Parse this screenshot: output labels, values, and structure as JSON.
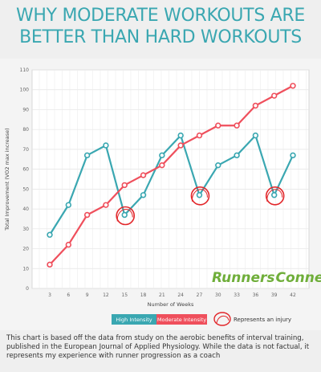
{
  "title_lines": [
    "WHY MODERATE WORKOUTS ARE",
    "BETTER THAN HARD WORKOUTS"
  ],
  "colors": {
    "title": "#3aa7b1",
    "high_intensity": "#3aa7b1",
    "moderate_intensity": "#ef4f5c",
    "injury": "#e2262a",
    "brand": "#6fae3a"
  },
  "chart_data": {
    "type": "line",
    "x": [
      3,
      6,
      9,
      12,
      15,
      18,
      21,
      24,
      27,
      30,
      33,
      36,
      39,
      42
    ],
    "xlabel": "Number of Weeks",
    "ylabel": "Total Improvement (VO2 max increase)",
    "ylim": [
      0,
      110
    ],
    "yticks": [
      0,
      10,
      20,
      30,
      40,
      50,
      60,
      70,
      80,
      90,
      100,
      110
    ],
    "grid": true,
    "series": [
      {
        "name": "High Intensity",
        "color": "#3aa7b1",
        "values": [
          27,
          42,
          67,
          72,
          37,
          47,
          67,
          77,
          47,
          62,
          67,
          77,
          47,
          67
        ]
      },
      {
        "name": "Moderate Intensity",
        "color": "#ef4f5c",
        "values": [
          12,
          22,
          37,
          42,
          52,
          57,
          62,
          72,
          77,
          82,
          82,
          92,
          97,
          102
        ]
      }
    ],
    "injuries": [
      {
        "x": 15,
        "y": 37
      },
      {
        "x": 27,
        "y": 47
      },
      {
        "x": 39,
        "y": 47
      }
    ],
    "legend": {
      "high": "High Intensity",
      "moderate": "Moderate Intensity",
      "injury": "Represents an injury"
    },
    "watermark": {
      "part1": "Runners",
      "part2": "Connect"
    }
  },
  "caption_lines": [
    "This chart is based off the data from study on the aerobic benefits of interval training,",
    "published in the European Journal of Applied Physiology. While the data is not factual, it",
    "represents my experience with runner progression as a coach"
  ]
}
